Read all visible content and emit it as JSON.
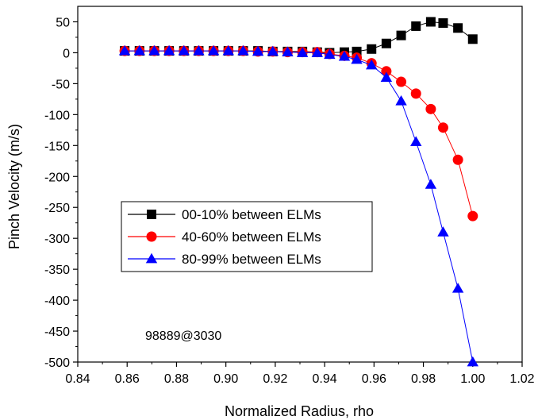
{
  "chart_data": {
    "type": "line",
    "title": "",
    "xlabel": "Normalized Radius, rho",
    "ylabel": "Pinch Velocity (m/s)",
    "xlim": [
      0.84,
      1.02
    ],
    "ylim": [
      -500,
      75
    ],
    "xticks": [
      "0.84",
      "0.86",
      "0.88",
      "0.90",
      "0.92",
      "0.94",
      "0.96",
      "0.98",
      "1.00",
      "1.02"
    ],
    "yticks": [
      "50",
      "0",
      "-50",
      "-100",
      "-150",
      "-200",
      "-250",
      "-300",
      "-350",
      "-400",
      "-450",
      "-500"
    ],
    "legend_position": "center-left",
    "annotation": "98889@3030",
    "series": [
      {
        "name": "00-10% between ELMs",
        "color": "#000000",
        "marker": "square",
        "x": [
          0.859,
          0.865,
          0.871,
          0.877,
          0.883,
          0.889,
          0.895,
          0.901,
          0.907,
          0.913,
          0.919,
          0.925,
          0.931,
          0.937,
          0.942,
          0.948,
          0.953,
          0.959,
          0.965,
          0.971,
          0.977,
          0.983,
          0.988,
          0.994,
          1.0
        ],
        "y": [
          3,
          3,
          3,
          3,
          3,
          3,
          3,
          3,
          3,
          3,
          2,
          2,
          2,
          1,
          0,
          1,
          2,
          6,
          15,
          28,
          43,
          50,
          48,
          40,
          22
        ]
      },
      {
        "name": "40-60% between ELMs",
        "color": "#ff0000",
        "marker": "circle",
        "x": [
          0.859,
          0.865,
          0.871,
          0.877,
          0.883,
          0.889,
          0.895,
          0.901,
          0.907,
          0.913,
          0.919,
          0.925,
          0.931,
          0.937,
          0.942,
          0.948,
          0.953,
          0.959,
          0.965,
          0.971,
          0.977,
          0.983,
          0.988,
          0.994,
          1.0
        ],
        "y": [
          3,
          3,
          3,
          3,
          3,
          3,
          3,
          3,
          3,
          2,
          2,
          1,
          1,
          1,
          -2,
          -5,
          -8,
          -17,
          -30,
          -47,
          -66,
          -91,
          -121,
          -173,
          -264
        ]
      },
      {
        "name": "80-99% between ELMs",
        "color": "#0000ff",
        "marker": "triangle",
        "x": [
          0.859,
          0.865,
          0.871,
          0.877,
          0.883,
          0.889,
          0.895,
          0.901,
          0.907,
          0.913,
          0.919,
          0.925,
          0.931,
          0.937,
          0.942,
          0.948,
          0.953,
          0.959,
          0.965,
          0.971,
          0.977,
          0.983,
          0.988,
          0.994,
          1.0
        ],
        "y": [
          3,
          3,
          3,
          3,
          3,
          3,
          3,
          3,
          3,
          2,
          2,
          1,
          0,
          0,
          -3,
          -6,
          -11,
          -20,
          -40,
          -78,
          -144,
          -213,
          -290,
          -381,
          -500
        ]
      }
    ]
  }
}
